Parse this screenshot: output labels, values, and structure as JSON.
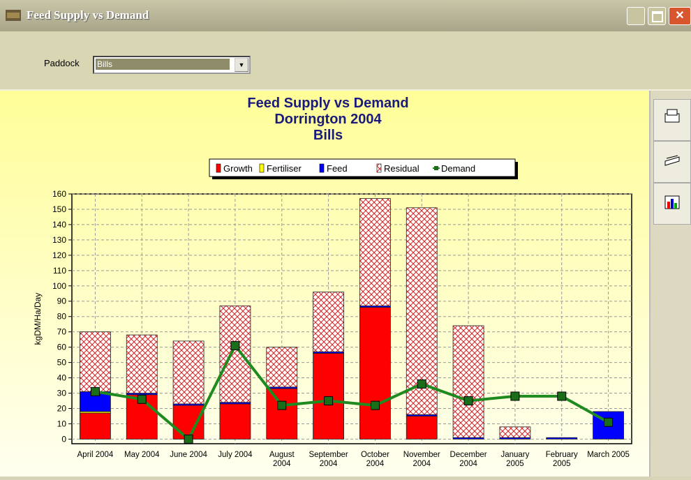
{
  "window": {
    "title": "Feed Supply vs Demand"
  },
  "toolbar": {
    "paddock_label": "Paddock",
    "paddock_value": "Bills"
  },
  "chart_data": {
    "type": "stacked_bar",
    "title_lines": [
      "Feed Supply vs Demand",
      "Dorrington 2004",
      "Bills"
    ],
    "y_label": "kgDM/Ha/Day",
    "categories": [
      "April 2004",
      "May 2004",
      "June 2004",
      "July 2004",
      "August 2004",
      "September 2004",
      "October 2004",
      "November 2004",
      "December 2004",
      "January 2005",
      "February 2005",
      "March 2005"
    ],
    "series": [
      {
        "name": "Growth",
        "type": "bar",
        "color": "#ff0000",
        "values": [
          17,
          29,
          22,
          23,
          33,
          56,
          86,
          15,
          0,
          0,
          0,
          0
        ]
      },
      {
        "name": "Fertiliser",
        "type": "bar",
        "color": "#ffff00",
        "values": [
          1,
          0,
          0,
          0,
          0,
          0,
          0,
          0,
          0,
          0,
          0,
          0
        ]
      },
      {
        "name": "Feed",
        "type": "bar",
        "color": "#0000ff",
        "values": [
          13,
          1,
          1,
          1,
          1,
          1,
          1,
          1,
          1,
          1,
          1,
          18
        ]
      },
      {
        "name": "Residual",
        "type": "bar",
        "color": "#e02020",
        "pattern": "crosshatch",
        "values": [
          39,
          38,
          41,
          63,
          26,
          39,
          70,
          135,
          73,
          7,
          0,
          0
        ]
      },
      {
        "name": "Demand",
        "type": "line",
        "color": "#1f8a1f",
        "values": [
          31,
          26,
          0,
          61,
          22,
          25,
          22,
          36,
          25,
          28,
          28,
          11
        ]
      }
    ],
    "ylim": [
      -3,
      160
    ],
    "yticks": [
      0,
      10,
      20,
      30,
      40,
      50,
      60,
      70,
      80,
      90,
      100,
      110,
      120,
      130,
      140,
      150,
      160
    ],
    "grid": true,
    "legend": "top"
  }
}
